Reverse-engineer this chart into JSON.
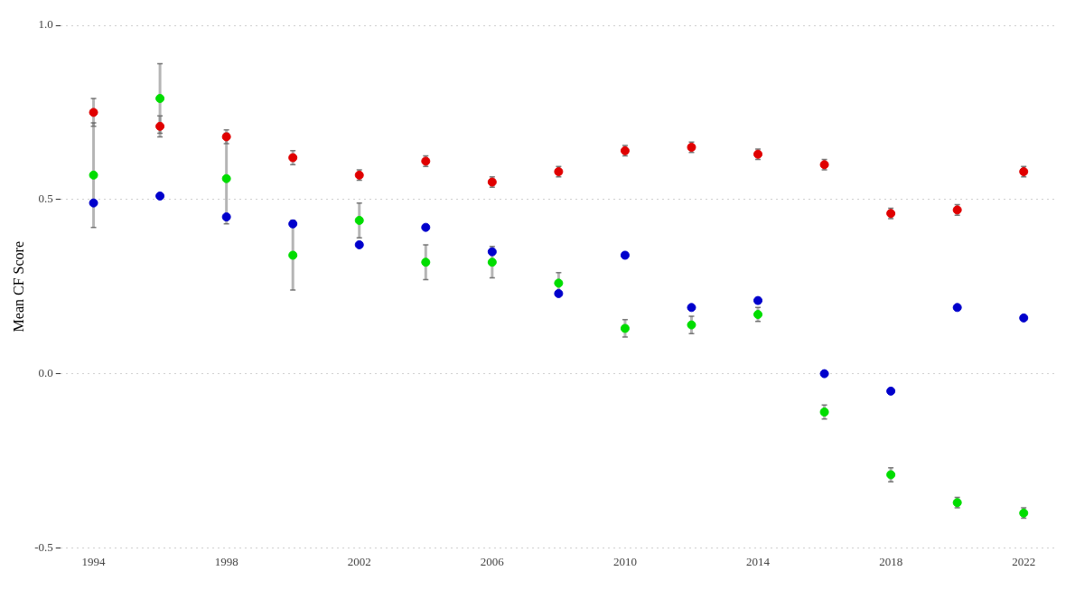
{
  "chart_data": {
    "type": "scatter",
    "ylabel": "Mean CF Score",
    "x": [
      1994,
      1996,
      1998,
      2000,
      2002,
      2004,
      2006,
      2008,
      2010,
      2012,
      2014,
      2016,
      2018,
      2020,
      2022
    ],
    "series": [
      {
        "color": "#e00000",
        "values": [
          0.75,
          0.71,
          0.68,
          0.62,
          0.57,
          0.61,
          0.55,
          0.58,
          0.64,
          0.65,
          0.63,
          0.6,
          0.46,
          0.47,
          0.58
        ],
        "errors": [
          0.04,
          0.03,
          0.02,
          0.02,
          0.015,
          0.015,
          0.015,
          0.015,
          0.015,
          0.015,
          0.015,
          0.015,
          0.015,
          0.015,
          0.015
        ]
      },
      {
        "color": "#0000cc",
        "values": [
          0.49,
          0.51,
          0.45,
          0.43,
          0.37,
          0.42,
          0.35,
          0.23,
          0.34,
          0.19,
          0.21,
          0,
          -0.05,
          0.19,
          0.16
        ]
      },
      {
        "color": "#00dd00",
        "values": [
          0.57,
          0.79,
          0.56,
          0.34,
          0.44,
          0.32,
          0.32,
          0.26,
          0.13,
          0.14,
          0.17,
          -0.11,
          -0.29,
          -0.37,
          -0.4
        ],
        "errors": [
          0.15,
          0.1,
          0.13,
          0.1,
          0.05,
          0.05,
          0.045,
          0.03,
          0.025,
          0.025,
          0.02,
          0.02,
          0.02,
          0.015,
          0.015
        ]
      }
    ],
    "xlim": [
      1993,
      2023
    ],
    "xticks": [
      1994,
      1998,
      2002,
      2006,
      2010,
      2014,
      2018,
      2022
    ],
    "ylim": [
      -0.5,
      1
    ],
    "yticks": [
      {
        "value": -0.5,
        "label": "-0.5"
      },
      {
        "value": 0,
        "label": "0.0"
      },
      {
        "value": 0.5,
        "label": "0.5"
      },
      {
        "value": 1,
        "label": "1.0"
      }
    ],
    "grid": "y",
    "marker": "circle"
  }
}
